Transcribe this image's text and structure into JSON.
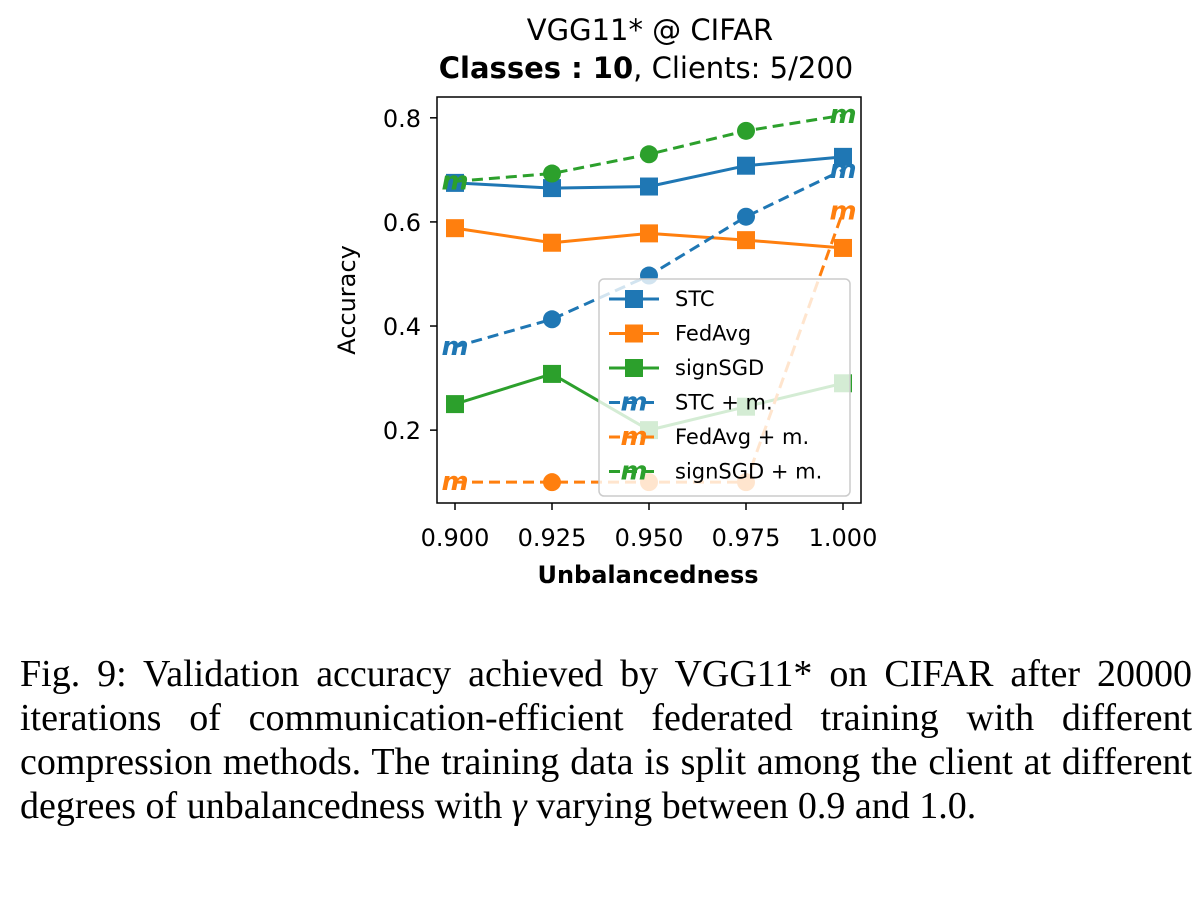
{
  "figure": {
    "title_line1": "VGG11* @ CIFAR",
    "title_line2_bold": "Classes : 10",
    "title_line2_rest": ", Clients: 5/200"
  },
  "caption": {
    "before_gamma": "Fig. 9: Validation accuracy achieved by VGG11* on CIFAR after 20000 iterations of communication-efficient federated training with different compression methods. The training data is split among the client at different degrees of unbalancedness with ",
    "gamma": "γ",
    "after_gamma": " varying between 0.9 and 1.0."
  },
  "chart_data": {
    "type": "line",
    "xlabel": "Unbalancedness",
    "ylabel": "Accuracy",
    "x": [
      0.9,
      0.925,
      0.95,
      0.975,
      1.0
    ],
    "x_tick_labels": [
      "0.900",
      "0.925",
      "0.950",
      "0.975",
      "1.000"
    ],
    "y_ticks": [
      0.2,
      0.4,
      0.6,
      0.8
    ],
    "y_tick_labels": [
      "0.2",
      "0.4",
      "0.6",
      "0.8"
    ],
    "xlim": [
      0.9,
      1.0
    ],
    "ylim": [
      0.06,
      0.84
    ],
    "grid": false,
    "legend_position": "lower right",
    "colors": {
      "blue": "#1f77b4",
      "orange": "#ff7f0e",
      "green": "#2ca02c"
    },
    "series": [
      {
        "name": "STC",
        "color": "#1f77b4",
        "linestyle": "solid",
        "marker": "square",
        "values": [
          0.675,
          0.665,
          0.668,
          0.708,
          0.725
        ]
      },
      {
        "name": "FedAvg",
        "color": "#ff7f0e",
        "linestyle": "solid",
        "marker": "square",
        "values": [
          0.588,
          0.56,
          0.578,
          0.565,
          0.55
        ]
      },
      {
        "name": "signSGD",
        "color": "#2ca02c",
        "linestyle": "solid",
        "marker": "square",
        "values": [
          0.25,
          0.308,
          0.2,
          0.245,
          0.29
        ]
      },
      {
        "name": "STC + m.",
        "color": "#1f77b4",
        "linestyle": "dashed",
        "marker": "circle",
        "end_marker": "m",
        "values": [
          0.36,
          0.413,
          0.497,
          0.61,
          0.7
        ]
      },
      {
        "name": "FedAvg + m.",
        "color": "#ff7f0e",
        "linestyle": "dashed",
        "marker": "circle",
        "end_marker": "m",
        "values": [
          0.1,
          0.1,
          0.1,
          0.1,
          0.62
        ]
      },
      {
        "name": "signSGD + m.",
        "color": "#2ca02c",
        "linestyle": "dashed",
        "marker": "circle",
        "end_marker": "m",
        "values": [
          0.678,
          0.693,
          0.73,
          0.775,
          0.805
        ]
      }
    ]
  }
}
